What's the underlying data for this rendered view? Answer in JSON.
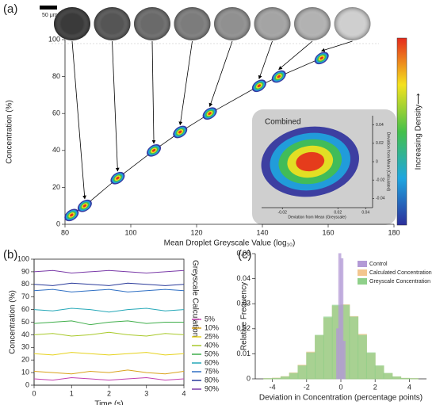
{
  "chart_data": [
    {
      "type": "scatter",
      "panel": "(a)",
      "scale_bar": "50 μm",
      "xlabel": "Mean Droplet Greyscale Value (log₁₀)",
      "ylabel": "Concentration (%)",
      "colorbar_label": "Increasing Density⟶",
      "density_colors": [
        "#2c2f9b",
        "#1ea6e0",
        "#45c04a",
        "#f4e21e",
        "#e52a1c"
      ],
      "x": [
        82,
        86,
        96,
        107,
        115,
        124,
        139,
        145,
        158
      ],
      "values": [
        5,
        10,
        25,
        40,
        50,
        60,
        75,
        80,
        90
      ],
      "xlim": [
        80,
        180
      ],
      "xticks": [
        80,
        100,
        120,
        140,
        160,
        180
      ],
      "ylim": [
        0,
        100
      ],
      "yticks": [
        0,
        20,
        40,
        60,
        80,
        100
      ]
    },
    {
      "type": "density",
      "title": "Combined",
      "xlabel": "Deviation from Mean (Greyscale)",
      "ylabel": "Deviation from Mean (Calculated)",
      "xlim": [
        -0.035,
        0.045
      ],
      "xticks": [
        -0.02,
        0.02,
        0.04
      ],
      "ylim": [
        -0.05,
        0.05
      ],
      "yticks": [
        -0.04,
        -0.02,
        0,
        0.02,
        0.04
      ]
    },
    {
      "type": "line",
      "panel": "(b)",
      "xlabel": "Time (s)",
      "ylabel": "Concentration (%)",
      "legend_title": "Greyscale Calculation",
      "x": [
        0,
        0.5,
        1,
        1.5,
        2,
        2.5,
        3,
        3.5,
        4
      ],
      "xlim": [
        0,
        4
      ],
      "xticks": [
        0,
        1,
        2,
        3,
        4
      ],
      "ylim": [
        0,
        100
      ],
      "yticks": [
        0,
        10,
        20,
        30,
        40,
        50,
        60,
        70,
        80,
        90,
        100
      ],
      "series": [
        {
          "name": "5%",
          "color": "#c23fb0",
          "values": [
            5,
            4,
            6,
            5,
            4,
            5,
            6,
            4,
            5
          ]
        },
        {
          "name": "10%",
          "color": "#d9a21b",
          "values": [
            11,
            10,
            9,
            11,
            10,
            12,
            10,
            9,
            11
          ]
        },
        {
          "name": "25%",
          "color": "#e6d21c",
          "values": [
            25,
            24,
            26,
            25,
            24,
            25,
            26,
            24,
            25
          ]
        },
        {
          "name": "40%",
          "color": "#a8c92a",
          "values": [
            40,
            41,
            39,
            40,
            42,
            40,
            39,
            41,
            40
          ]
        },
        {
          "name": "50%",
          "color": "#3fae4a",
          "values": [
            49,
            50,
            51,
            48,
            50,
            51,
            49,
            50,
            50
          ]
        },
        {
          "name": "60%",
          "color": "#25a8b8",
          "values": [
            60,
            59,
            61,
            60,
            58,
            60,
            61,
            59,
            60
          ]
        },
        {
          "name": "75%",
          "color": "#2f6fc4",
          "values": [
            75,
            76,
            74,
            75,
            76,
            74,
            75,
            76,
            75
          ]
        },
        {
          "name": "80%",
          "color": "#2a3a9a",
          "values": [
            80,
            79,
            81,
            80,
            79,
            81,
            80,
            79,
            80
          ]
        },
        {
          "name": "90%",
          "color": "#7a3aa8",
          "values": [
            90,
            91,
            89,
            90,
            91,
            90,
            89,
            90,
            91
          ]
        }
      ]
    },
    {
      "type": "histogram",
      "panel": "(c)",
      "xlabel": "Deviation in Concentration (percentage points)",
      "ylabel": "Relative Frequency",
      "xlim": [
        -5,
        5
      ],
      "xticks": [
        -4,
        -2,
        0,
        2,
        4
      ],
      "ylim": [
        0,
        0.05
      ],
      "yticks": [
        0,
        0.01,
        0.02,
        0.03,
        0.04,
        0.05
      ],
      "series": [
        {
          "name": "Control",
          "color": "#b39ad6",
          "bins": [
            -0.25,
            -0.125,
            0,
            0.125,
            0.25
          ],
          "values": [
            0.02,
            0.05,
            0.048,
            0.015
          ]
        },
        {
          "name": "Calculated Concentration",
          "color": "#f3c68f",
          "bins": [
            -4.5,
            -4,
            -3.5,
            -3,
            -2.5,
            -2,
            -1.5,
            -1,
            -0.5,
            0,
            0.5,
            1,
            1.5,
            2,
            2.5,
            3,
            3.5,
            4,
            4.5
          ],
          "values": [
            0.0001,
            0.0003,
            0.0009,
            0.0024,
            0.0055,
            0.0107,
            0.0172,
            0.0242,
            0.029,
            0.0296,
            0.0249,
            0.0178,
            0.0101,
            0.005,
            0.0021,
            0.0008,
            0.0002,
            0.0001
          ]
        },
        {
          "name": "Greyscale Concentration",
          "color": "#8fd08a",
          "bins": [
            -4.5,
            -4,
            -3.5,
            -3,
            -2.5,
            -2,
            -1.5,
            -1,
            -0.5,
            0,
            0.5,
            1,
            1.5,
            2,
            2.5,
            3,
            3.5,
            4,
            4.5
          ],
          "values": [
            0.0001,
            0.0002,
            0.0008,
            0.0022,
            0.0052,
            0.0104,
            0.0174,
            0.0247,
            0.0294,
            0.0294,
            0.0247,
            0.0174,
            0.0104,
            0.0052,
            0.0022,
            0.0008,
            0.0002,
            0.0001
          ]
        }
      ]
    }
  ]
}
